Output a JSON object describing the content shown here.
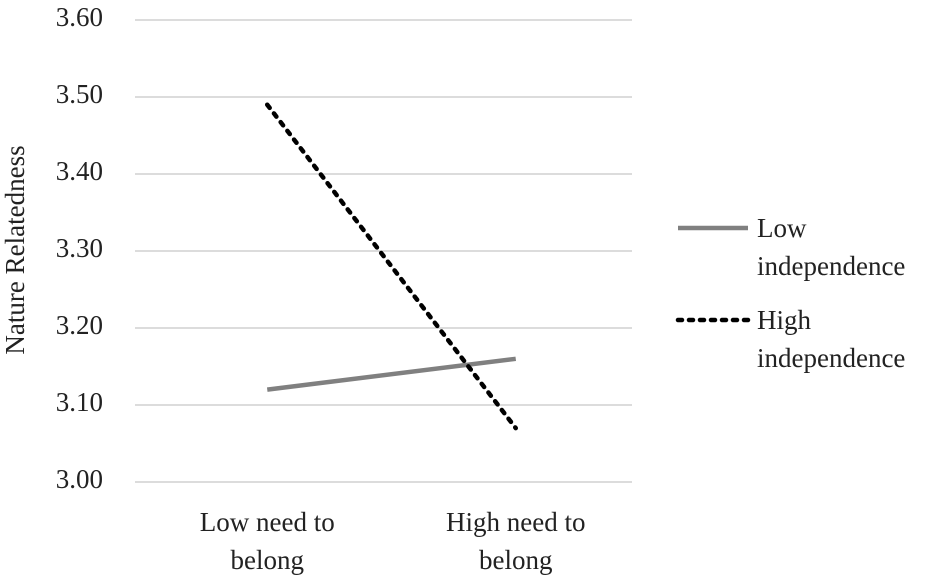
{
  "chart_data": {
    "type": "line",
    "y_label": "Nature Relatedness",
    "categories": [
      "Low need to belong",
      "High need to belong"
    ],
    "series": [
      {
        "name": "Low independence",
        "color": "#808080",
        "style": "solid",
        "values": [
          3.12,
          3.16
        ]
      },
      {
        "name": "High independence",
        "color": "#000000",
        "style": "dotted",
        "values": [
          3.49,
          3.07
        ]
      }
    ],
    "ylim": [
      3.0,
      3.6
    ],
    "yticks": [
      {
        "value": 3.0,
        "label": "3.00"
      },
      {
        "value": 3.1,
        "label": "3.10"
      },
      {
        "value": 3.2,
        "label": "3.20"
      },
      {
        "value": 3.3,
        "label": "3.30"
      },
      {
        "value": 3.4,
        "label": "3.40"
      },
      {
        "value": 3.5,
        "label": "3.50"
      },
      {
        "value": 3.6,
        "label": "3.60"
      }
    ],
    "grid": true,
    "legend": "right"
  }
}
